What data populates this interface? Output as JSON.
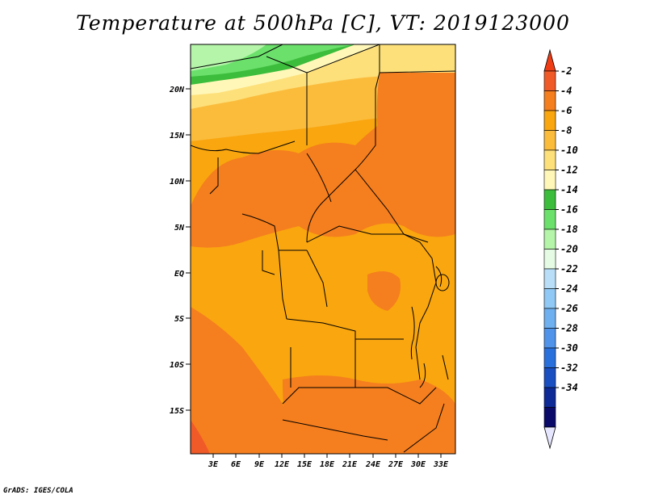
{
  "title": "Temperature at 500hPa [C], VT: 2019123000",
  "credit": "GrADS: IGES/COLA",
  "map": {
    "lat_labels": [
      "20N",
      "15N",
      "10N",
      "5N",
      "EQ",
      "5S",
      "10S",
      "15S"
    ],
    "lon_labels": [
      "3E",
      "6E",
      "9E",
      "12E",
      "15E",
      "18E",
      "21E",
      "24E",
      "27E",
      "30E",
      "33E"
    ],
    "region": "Central Africa, approx. 0E-35E, 20S-24N"
  },
  "colorbar": {
    "labels": [
      "-2",
      "-4",
      "-6",
      "-8",
      "-10",
      "-12",
      "-14",
      "-16",
      "-18",
      "-20",
      "-22",
      "-24",
      "-26",
      "-28",
      "-30",
      "-32",
      "-34"
    ],
    "colors": [
      "#f05a28",
      "#f57e1e",
      "#f9a60f",
      "#fbbc3c",
      "#fde07a",
      "#fff7b8",
      "#3cbd3c",
      "#6be06b",
      "#b4f5a9",
      "#e6fbe4",
      "#b8dff7",
      "#90c9f5",
      "#6fb0f0",
      "#4f93ea",
      "#2a70dc",
      "#1a4fc2",
      "#0e2a96",
      "#0a0a6a"
    ],
    "top_overflow_color": "#f03c14",
    "bottom_overflow_color": "#e6e6ff"
  }
}
